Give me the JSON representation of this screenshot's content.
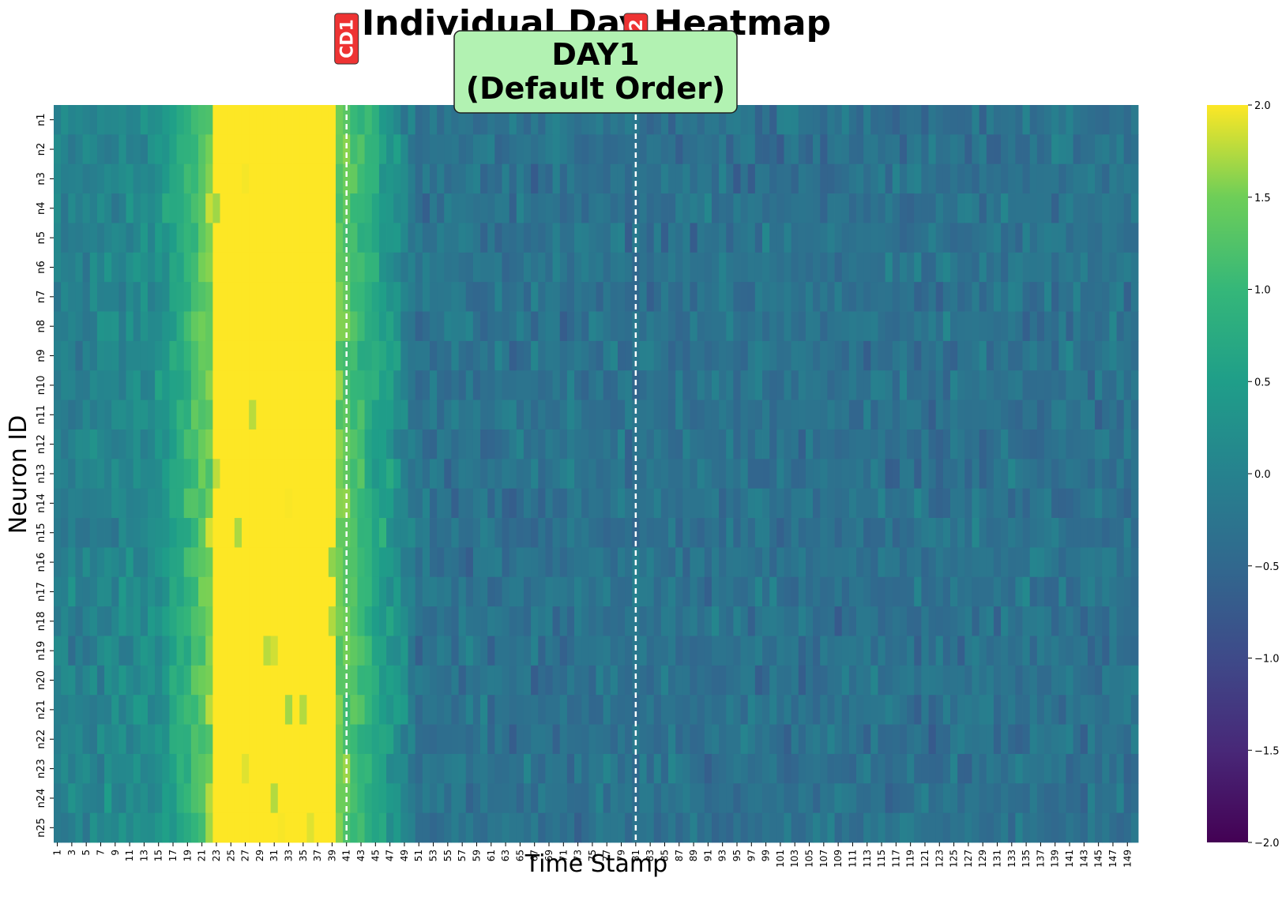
{
  "chart_data": {
    "type": "heatmap",
    "title": "Individual Day Heatmap",
    "subtitle_lines": [
      "DAY1",
      "(Default Order)"
    ],
    "xlabel": "Time Stamp",
    "ylabel": "Neuron ID",
    "rows": [
      "n1",
      "n2",
      "n3",
      "n4",
      "n5",
      "n6",
      "n7",
      "n8",
      "n9",
      "n10",
      "n11",
      "n12",
      "n13",
      "n14",
      "n15",
      "n16",
      "n17",
      "n18",
      "n19",
      "n20",
      "n21",
      "n22",
      "n23",
      "n24",
      "n25"
    ],
    "n_columns": 150,
    "x_tick_labels": [
      "1",
      "3",
      "5",
      "7",
      "9",
      "11",
      "13",
      "15",
      "17",
      "19",
      "21",
      "23",
      "25",
      "27",
      "29",
      "31",
      "33",
      "35",
      "37",
      "39",
      "41",
      "43",
      "45",
      "47",
      "49",
      "51",
      "53",
      "55",
      "57",
      "59",
      "61",
      "63",
      "65",
      "67",
      "69",
      "71",
      "73",
      "75",
      "77",
      "79",
      "81",
      "83",
      "85",
      "87",
      "89",
      "91",
      "93",
      "95",
      "97",
      "99",
      "101",
      "103",
      "105",
      "107",
      "109",
      "111",
      "113",
      "115",
      "117",
      "119",
      "121",
      "123",
      "125",
      "127",
      "129",
      "131",
      "133",
      "135",
      "137",
      "139",
      "141",
      "143",
      "145",
      "147",
      "149"
    ],
    "colorscale": "viridis",
    "vmin": -2.0,
    "vmax": 2.0,
    "colorbar_ticks": [
      "2.0",
      "1.5",
      "1.0",
      "0.5",
      "0.0",
      "−0.5",
      "−1.0",
      "−1.5",
      "−2.0"
    ],
    "colorbar_tick_values": [
      2.0,
      1.5,
      1.0,
      0.5,
      0.0,
      -0.5,
      -1.0,
      -1.5,
      -2.0
    ],
    "markers": [
      {
        "label": "CD1",
        "time_stamp": 41,
        "line_color": "#ffffff",
        "badge_color": "#ee3333"
      },
      {
        "label": "CD2",
        "time_stamp": 81,
        "line_color": "#ffffff",
        "badge_color": "#ee3333"
      }
    ],
    "approximate_pattern": {
      "high_band_time_stamps": [
        23,
        40
      ],
      "high_band_value": 2.0,
      "rising_time_stamps": [
        15,
        22
      ],
      "decay_time_stamps": [
        41,
        50
      ],
      "baseline_value": -0.3
    }
  }
}
